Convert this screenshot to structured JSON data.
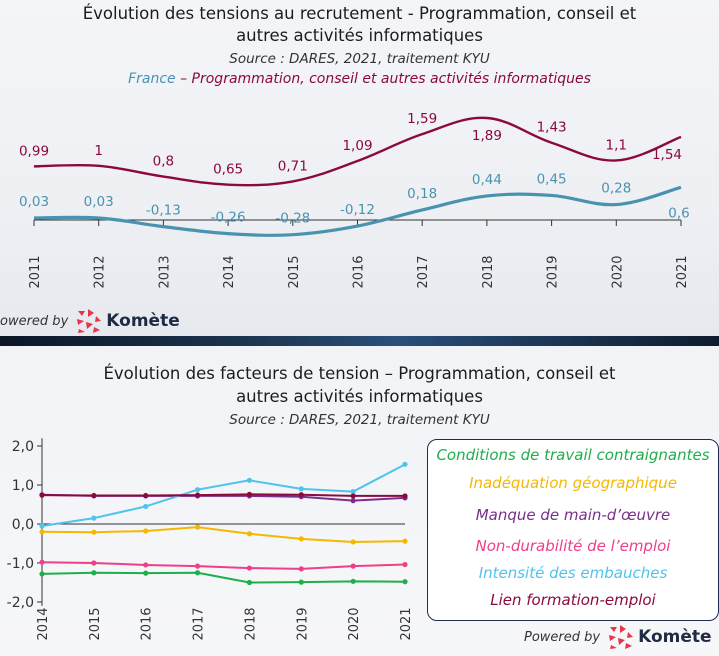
{
  "colors": {
    "france": "#4a93b0",
    "it_sector": "#8b0a3e",
    "conditions": "#1fae4b",
    "inadequation": "#f5b800",
    "manque": "#7a2f8c",
    "non_durabilite": "#ee3f8a",
    "intensite": "#4fc3ec",
    "lien": "#8b0a3e",
    "axis": "#333333",
    "kom_red": "#e8354a"
  },
  "top": {
    "title_line1": "Évolution des tensions au recrutement - Programmation, conseil et",
    "title_line2": "autres activités informatiques",
    "source": "Source : DARES, 2021, traitement KYU",
    "legend_france": "France",
    "legend_sep": " – ",
    "legend_sector": "Programmation, conseil et autres activités informatiques",
    "powered_by": "owered by",
    "brand": "Komète"
  },
  "bottom": {
    "title_line1": "Évolution des facteurs de tension – Programmation, conseil et",
    "title_line2": "autres activités informatiques",
    "source": "Source : DARES, 2021, traitement KYU",
    "powered_by": "Powered by",
    "brand": "Komète",
    "legend": [
      "Conditions de travail contraignantes",
      "Inadéquation géographique",
      "Manque de main-d’œuvre",
      "Non-durabilité de l’emploi",
      "Intensité des embauches",
      "Lien formation-emploi"
    ]
  },
  "chart_data": [
    {
      "type": "line",
      "title": "Évolution des tensions au recrutement - Programmation, conseil et autres activités informatiques",
      "categories": [
        "2011",
        "2012",
        "2013",
        "2014",
        "2015",
        "2016",
        "2017",
        "2018",
        "2019",
        "2020",
        "2021"
      ],
      "series": [
        {
          "name": "France",
          "values": [
            0.03,
            0.03,
            -0.13,
            -0.26,
            -0.28,
            -0.12,
            0.18,
            0.44,
            0.45,
            0.28,
            0.6
          ],
          "labels": [
            "0,03",
            "0,03",
            "-0,13",
            "-0,26",
            "-0,28",
            "-0,12",
            "0,18",
            "0,44",
            "0,45",
            "0,28",
            "0,6"
          ]
        },
        {
          "name": "Programmation, conseil et autres activités informatiques",
          "values": [
            0.99,
            1.0,
            0.8,
            0.65,
            0.71,
            1.09,
            1.59,
            1.89,
            1.43,
            1.1,
            1.54
          ],
          "labels": [
            "0,99",
            "1",
            "0,8",
            "0,65",
            "0,71",
            "1,09",
            "1,59",
            "1,89",
            "1,43",
            "1,1",
            "1,54"
          ]
        }
      ],
      "ylim": [
        -0.5,
        2.1
      ],
      "grid": false,
      "legend": "top"
    },
    {
      "type": "line",
      "title": "Évolution des facteurs de tension – Programmation, conseil et autres activités informatiques",
      "categories": [
        "2014",
        "2015",
        "2016",
        "2017",
        "2018",
        "2019",
        "2020",
        "2021"
      ],
      "yticks": [
        "-2,0",
        "-1,0",
        "0,0",
        "1,0",
        "2,0"
      ],
      "ylim": [
        -2.0,
        2.0
      ],
      "grid": false,
      "legend": "right",
      "series": [
        {
          "name": "Conditions de travail contraignantes",
          "values": [
            -1.28,
            -1.25,
            -1.26,
            -1.25,
            -1.5,
            -1.49,
            -1.47,
            -1.48
          ]
        },
        {
          "name": "Inadéquation géographique",
          "values": [
            -0.2,
            -0.21,
            -0.18,
            -0.08,
            -0.25,
            -0.38,
            -0.46,
            -0.44
          ]
        },
        {
          "name": "Manque de main-d’œuvre",
          "values": [
            0.75,
            0.72,
            0.72,
            0.72,
            0.72,
            0.7,
            0.6,
            0.67
          ]
        },
        {
          "name": "Non-durabilité de l’emploi",
          "values": [
            -0.98,
            -1.0,
            -1.05,
            -1.08,
            -1.13,
            -1.15,
            -1.08,
            -1.04
          ]
        },
        {
          "name": "Intensité des embauches",
          "values": [
            -0.05,
            0.15,
            0.45,
            0.88,
            1.12,
            0.9,
            0.83,
            1.53
          ]
        },
        {
          "name": "Lien formation-emploi",
          "values": [
            0.74,
            0.73,
            0.73,
            0.74,
            0.76,
            0.75,
            0.72,
            0.72
          ]
        }
      ]
    }
  ]
}
